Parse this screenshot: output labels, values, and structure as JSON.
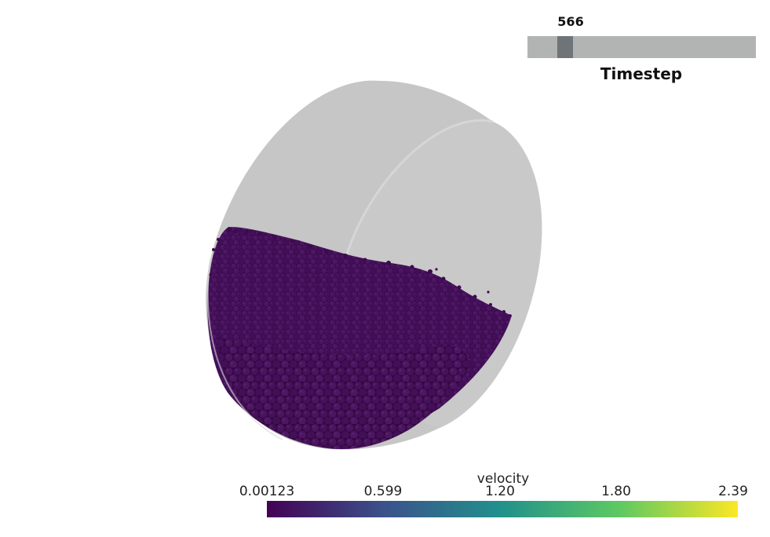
{
  "timestep": {
    "value": "566",
    "label": "Timestep",
    "position_fraction": 0.14,
    "track_color": "#b2b3b3",
    "handle_color": "#6f7478"
  },
  "colorbar": {
    "title": "velocity",
    "ticks": [
      "0.00123",
      "0.599",
      "1.20",
      "1.80",
      "2.39"
    ],
    "tick_values": [
      0.00123,
      0.599,
      1.2,
      1.8,
      2.39
    ],
    "range": [
      0.00123,
      2.39
    ],
    "colormap": "viridis",
    "colors": [
      "#440154",
      "#3b528b",
      "#21918c",
      "#5ec962",
      "#fde725"
    ]
  },
  "scene": {
    "background": "#ffffff",
    "container_color": "#c9c9c9",
    "particle_color": "#3d0a4f"
  }
}
